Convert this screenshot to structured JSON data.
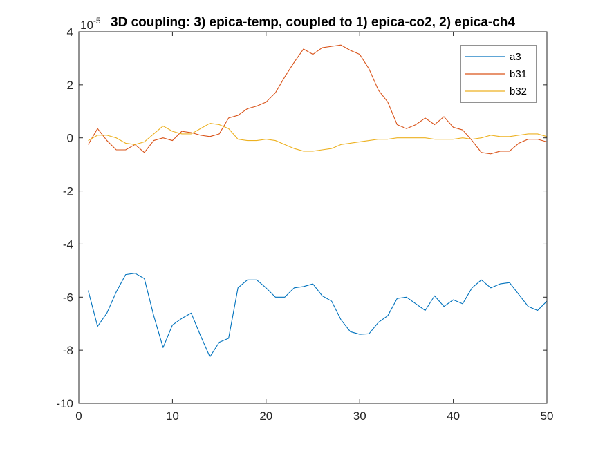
{
  "chart_data": {
    "type": "line",
    "title": "3D coupling:  3) epica-temp, coupled to 1) epica-co2, 2) epica-ch4",
    "xlabel": "",
    "ylabel": "",
    "xlim": [
      0,
      50
    ],
    "ylim": [
      -10,
      4
    ],
    "y_exponent_base": "10",
    "y_exponent_power": "-5",
    "xticks": [
      0,
      10,
      20,
      30,
      40,
      50
    ],
    "yticks": [
      -10,
      -8,
      -6,
      -4,
      -2,
      0,
      2,
      4
    ],
    "grid": false,
    "legend_position": "top-right",
    "x": [
      1,
      2,
      3,
      4,
      5,
      6,
      7,
      8,
      9,
      10,
      11,
      12,
      13,
      14,
      15,
      16,
      17,
      18,
      19,
      20,
      21,
      22,
      23,
      24,
      25,
      26,
      27,
      28,
      29,
      30,
      31,
      32,
      33,
      34,
      35,
      36,
      37,
      38,
      39,
      40,
      41,
      42,
      43,
      44,
      45,
      46,
      47,
      48,
      49,
      50
    ],
    "series": [
      {
        "name": "a3",
        "color": "#0072bd",
        "values": [
          -5.75,
          -7.1,
          -6.6,
          -5.8,
          -5.15,
          -5.1,
          -5.3,
          -6.7,
          -7.9,
          -7.05,
          -6.8,
          -6.6,
          -7.45,
          -8.25,
          -7.7,
          -7.55,
          -5.65,
          -5.35,
          -5.35,
          -5.65,
          -6.0,
          -6.0,
          -5.65,
          -5.6,
          -5.5,
          -5.95,
          -6.15,
          -6.85,
          -7.3,
          -7.4,
          -7.38,
          -6.95,
          -6.7,
          -6.05,
          -6.0,
          -6.25,
          -6.5,
          -5.95,
          -6.35,
          -6.1,
          -6.25,
          -5.65,
          -5.35,
          -5.65,
          -5.5,
          -5.45,
          -5.9,
          -6.35,
          -6.5,
          -6.15
        ]
      },
      {
        "name": "b31",
        "color": "#d95319",
        "values": [
          -0.25,
          0.35,
          -0.1,
          -0.45,
          -0.45,
          -0.25,
          -0.55,
          -0.1,
          0.0,
          -0.1,
          0.25,
          0.2,
          0.1,
          0.05,
          0.15,
          0.75,
          0.85,
          1.1,
          1.2,
          1.35,
          1.7,
          2.3,
          2.85,
          3.35,
          3.15,
          3.4,
          3.45,
          3.5,
          3.3,
          3.15,
          2.6,
          1.8,
          1.35,
          0.5,
          0.35,
          0.5,
          0.75,
          0.5,
          0.8,
          0.4,
          0.3,
          -0.1,
          -0.55,
          -0.6,
          -0.5,
          -0.5,
          -0.2,
          -0.05,
          -0.05,
          -0.15
        ]
      },
      {
        "name": "b32",
        "color": "#edb120",
        "values": [
          -0.1,
          0.1,
          0.1,
          0.0,
          -0.2,
          -0.25,
          -0.15,
          0.15,
          0.45,
          0.25,
          0.15,
          0.15,
          0.35,
          0.55,
          0.5,
          0.35,
          -0.05,
          -0.1,
          -0.1,
          -0.05,
          -0.1,
          -0.25,
          -0.4,
          -0.5,
          -0.5,
          -0.45,
          -0.4,
          -0.25,
          -0.2,
          -0.15,
          -0.1,
          -0.05,
          -0.05,
          0.0,
          0.0,
          0.0,
          0.0,
          -0.05,
          -0.05,
          -0.05,
          0.0,
          -0.05,
          0.0,
          0.1,
          0.05,
          0.05,
          0.1,
          0.15,
          0.15,
          0.05
        ]
      }
    ]
  }
}
